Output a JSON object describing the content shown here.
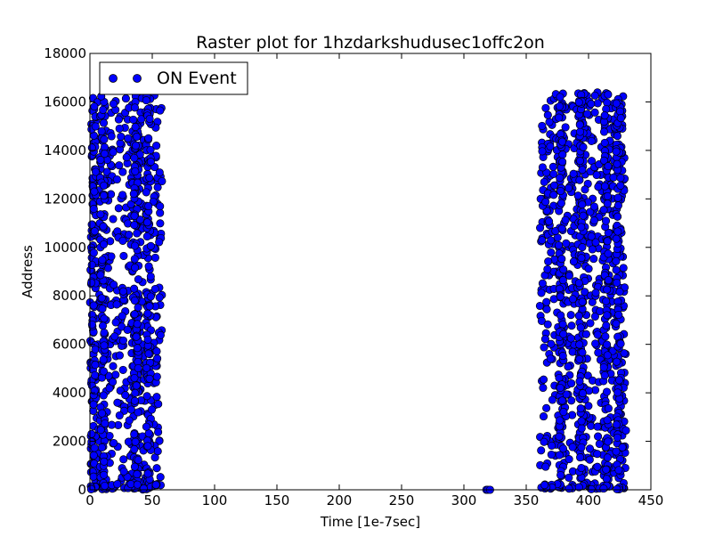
{
  "chart_data": {
    "type": "scatter",
    "title": "Raster plot for 1hzdarkshudusec1offc2on",
    "xlabel": "Time [1e-7sec]",
    "ylabel": "Address",
    "xlim": [
      0,
      450
    ],
    "ylim": [
      0,
      18000
    ],
    "xticks": [
      0,
      50,
      100,
      150,
      200,
      250,
      300,
      350,
      400,
      450
    ],
    "yticks": [
      0,
      2000,
      4000,
      6000,
      8000,
      10000,
      12000,
      14000,
      16000,
      18000
    ],
    "grid": false,
    "legend_position": "upper-left",
    "marker": "circle",
    "marker_color": "#0000ff",
    "series": [
      {
        "name": "ON Event",
        "color": "#0000ff",
        "clusters": [
          {
            "x_range": [
              0,
              58
            ],
            "y_range": [
              0,
              16300
            ],
            "dense_columns_x": [
              3,
              10,
              37,
              47
            ]
          },
          {
            "x_range": [
              318,
              321
            ],
            "y_range": [
              0,
              80
            ]
          },
          {
            "x_range": [
              361,
              430
            ],
            "y_range": [
              0,
              16400
            ],
            "dense_columns_x": [
              378,
              394,
              414,
              424
            ]
          }
        ]
      }
    ]
  }
}
